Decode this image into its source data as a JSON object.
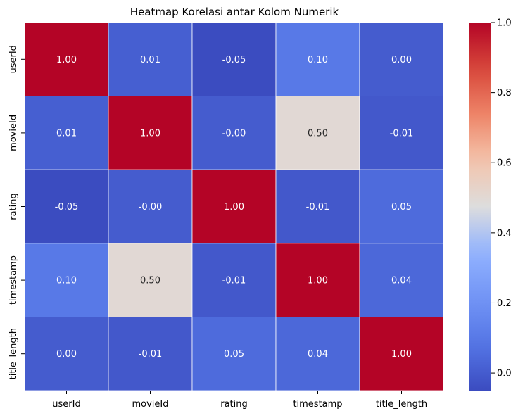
{
  "chart_data": {
    "type": "heatmap",
    "title": "Heatmap Korelasi antar Kolom Numerik",
    "xlabel": "",
    "ylabel": "",
    "x_categories": [
      "userId",
      "movieId",
      "rating",
      "timestamp",
      "title_length"
    ],
    "y_categories": [
      "userId",
      "movieId",
      "rating",
      "timestamp",
      "title_length"
    ],
    "values": [
      [
        1.0,
        0.01,
        -0.05,
        0.1,
        0.0
      ],
      [
        0.01,
        1.0,
        -0.0,
        0.5,
        -0.01
      ],
      [
        -0.05,
        -0.0,
        1.0,
        -0.01,
        0.05
      ],
      [
        0.1,
        0.5,
        -0.01,
        1.0,
        0.04
      ],
      [
        0.0,
        -0.01,
        0.05,
        0.04,
        1.0
      ]
    ],
    "cell_labels": [
      [
        "1.00",
        "0.01",
        "-0.05",
        "0.10",
        "0.00"
      ],
      [
        "0.01",
        "1.00",
        "-0.00",
        "0.50",
        "-0.01"
      ],
      [
        "-0.05",
        "-0.00",
        "1.00",
        "-0.01",
        "0.05"
      ],
      [
        "0.10",
        "0.50",
        "-0.01",
        "1.00",
        "0.04"
      ],
      [
        "0.00",
        "-0.01",
        "0.05",
        "0.04",
        "1.00"
      ]
    ],
    "colormap": "coolwarm",
    "vmin": -0.05,
    "vmax": 1.0,
    "colorbar": {
      "ticks": [
        0.0,
        0.2,
        0.4,
        0.6,
        0.8,
        1.0
      ],
      "tick_labels": [
        "0.0",
        "0.2",
        "0.4",
        "0.6",
        "0.8",
        "1.0"
      ]
    },
    "grid": false,
    "legend": "colorbar-right"
  }
}
